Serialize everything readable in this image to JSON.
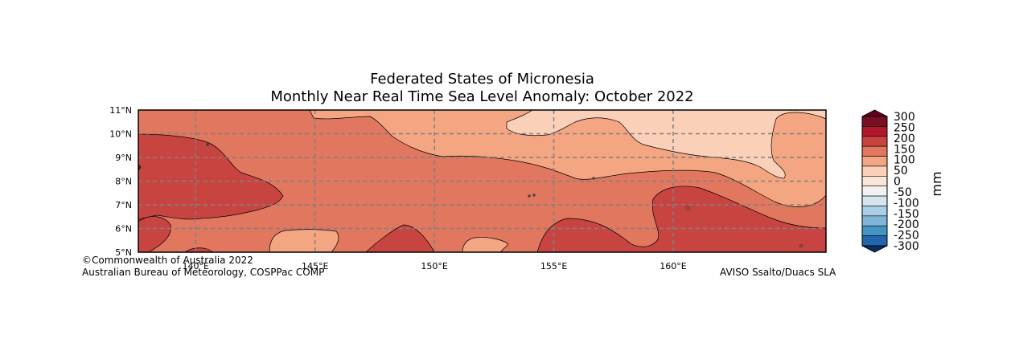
{
  "title": {
    "line1": "Federated States of Micronesia",
    "line2": "Monthly Near Real Time Sea Level Anomaly: October 2022"
  },
  "map": {
    "lon_range": [
      137.6,
      166.4
    ],
    "lat_range": [
      5,
      11
    ],
    "x_ticks": [
      {
        "label": "140°E",
        "lon": 140
      },
      {
        "label": "145°E",
        "lon": 145
      },
      {
        "label": "150°E",
        "lon": 150
      },
      {
        "label": "155°E",
        "lon": 155
      },
      {
        "label": "160°E",
        "lon": 160
      }
    ],
    "y_ticks": [
      {
        "label": "11°N",
        "lat": 11
      },
      {
        "label": "10°N",
        "lat": 10
      },
      {
        "label": "9°N",
        "lat": 9
      },
      {
        "label": "8°N",
        "lat": 8
      },
      {
        "label": "7°N",
        "lat": 7
      },
      {
        "label": "6°N",
        "lat": 6
      },
      {
        "label": "5°N",
        "lat": 5
      }
    ],
    "gridlines": "dashed grey"
  },
  "colorbar": {
    "unit": "mm",
    "levels": [
      {
        "label": "300",
        "color": "#7a0e23"
      },
      {
        "label": "250",
        "color": "#b2182b"
      },
      {
        "label": "200",
        "color": "#c84440"
      },
      {
        "label": "150",
        "color": "#e0775e"
      },
      {
        "label": "100",
        "color": "#f4a582"
      },
      {
        "label": "50",
        "color": "#fbd0b9"
      },
      {
        "label": "0",
        "color": "#fbe5d6"
      },
      {
        "label": "-50",
        "color": "#f1f1f1"
      },
      {
        "label": "-100",
        "color": "#d4e5f0"
      },
      {
        "label": "-150",
        "color": "#aacfe5"
      },
      {
        "label": "-200",
        "color": "#7fb5d6"
      },
      {
        "label": "-250",
        "color": "#4393c3"
      },
      {
        "label": "-300",
        "color": "#2166ac"
      }
    ],
    "top_arrow_color": "#67001f",
    "bottom_arrow_color": "#053061"
  },
  "credits": {
    "line1": "©Commonwealth of Australia 2022",
    "line2": "Australian Bureau of Meteorology, COSPPac COMP",
    "right": "AVISO Ssalto/Duacs SLA"
  }
}
